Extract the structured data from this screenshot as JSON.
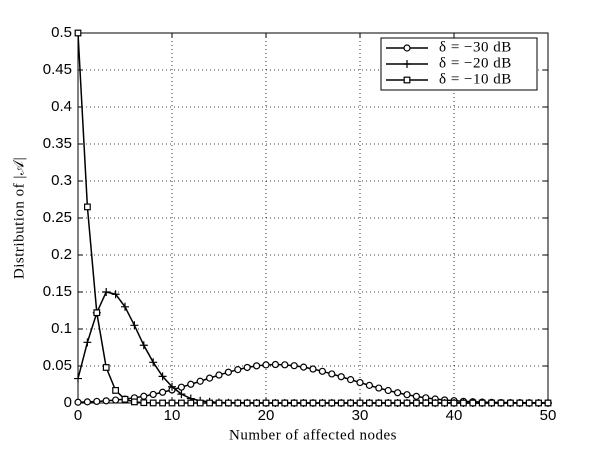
{
  "chart_data": {
    "type": "line",
    "xlabel": "Number of affected nodes",
    "ylabel": "Distribution of |𝒜|",
    "x": [
      0,
      1,
      2,
      3,
      4,
      5,
      6,
      7,
      8,
      9,
      10,
      11,
      12,
      13,
      14,
      15,
      16,
      17,
      18,
      19,
      20,
      21,
      22,
      23,
      24,
      25,
      26,
      27,
      28,
      29,
      30,
      31,
      32,
      33,
      34,
      35,
      36,
      37,
      38,
      39,
      40,
      41,
      42,
      43,
      44,
      45,
      46,
      47,
      48,
      49,
      50
    ],
    "xlim": [
      0,
      50
    ],
    "xticks": [
      0,
      10,
      20,
      30,
      40,
      50
    ],
    "ylim": [
      0,
      0.5
    ],
    "yticks": [
      0,
      0.05,
      0.1,
      0.15,
      0.2,
      0.25,
      0.3,
      0.35,
      0.4,
      0.45,
      0.5
    ],
    "grid": true,
    "legend": "upper right",
    "series": [
      {
        "name": "δ = −30 dB",
        "color": "#000000",
        "marker": "circle",
        "values": [
          0.001,
          0.0015,
          0.0021,
          0.0029,
          0.004,
          0.0053,
          0.007,
          0.0091,
          0.0116,
          0.0145,
          0.0177,
          0.0214,
          0.0253,
          0.0294,
          0.0336,
          0.0378,
          0.0416,
          0.0451,
          0.048,
          0.0502,
          0.0515,
          0.052,
          0.0516,
          0.0504,
          0.0485,
          0.0459,
          0.0428,
          0.0393,
          0.0355,
          0.0316,
          0.0276,
          0.0238,
          0.0202,
          0.0169,
          0.0139,
          0.0112,
          0.009,
          0.007,
          0.0054,
          0.0041,
          0.0031,
          0.0023,
          0.0017,
          0.0012,
          0.0008,
          0.0006,
          0.0004,
          0.0003,
          0.0002,
          0.0001,
          0.0001
        ]
      },
      {
        "name": "δ = −20 dB",
        "color": "#000000",
        "marker": "plus",
        "values": [
          0.033,
          0.082,
          0.122,
          0.15,
          0.147,
          0.13,
          0.105,
          0.078,
          0.055,
          0.036,
          0.022,
          0.012,
          0.006,
          0.003,
          0.0015,
          0.0007,
          0.0003,
          0.0001,
          0.0001,
          0,
          0,
          0,
          0,
          0,
          0,
          0,
          0,
          0,
          0,
          0,
          0,
          0,
          0,
          0,
          0,
          0,
          0,
          0,
          0,
          0,
          0,
          0,
          0,
          0,
          0,
          0,
          0,
          0,
          0,
          0,
          0
        ]
      },
      {
        "name": "δ = −10 dB",
        "color": "#000000",
        "marker": "square",
        "values": [
          0.5,
          0.265,
          0.122,
          0.048,
          0.017,
          0.005,
          0.0015,
          0.0004,
          0.0001,
          0,
          0,
          0,
          0,
          0,
          0,
          0,
          0,
          0,
          0,
          0,
          0,
          0,
          0,
          0,
          0,
          0,
          0,
          0,
          0,
          0,
          0,
          0,
          0,
          0,
          0,
          0,
          0,
          0,
          0,
          0,
          0,
          0,
          0,
          0,
          0,
          0,
          0,
          0,
          0,
          0,
          0
        ]
      }
    ]
  }
}
